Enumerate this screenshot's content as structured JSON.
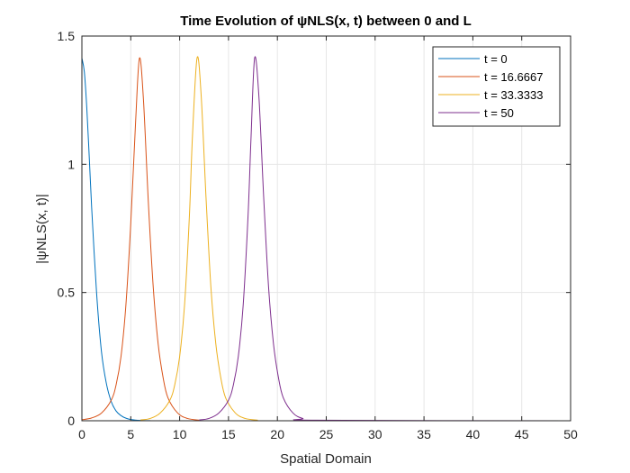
{
  "chart_data": {
    "type": "line",
    "title": "Time Evolution of ψNLS(x, t) between 0 and L",
    "xlabel": "Spatial Domain",
    "ylabel": "|ψNLS(x, t)|",
    "xlim": [
      0,
      50
    ],
    "ylim": [
      0,
      1.5
    ],
    "xticks": [
      0,
      5,
      10,
      15,
      20,
      25,
      30,
      35,
      40,
      45,
      50
    ],
    "yticks": [
      0,
      0.5,
      1,
      1.5
    ],
    "xtick_labels": [
      "0",
      "5",
      "10",
      "15",
      "20",
      "25",
      "30",
      "35",
      "40",
      "45",
      "50"
    ],
    "ytick_labels": [
      "0",
      "0.5",
      "1",
      "1.5"
    ],
    "grid": true,
    "legend_position": "top-right",
    "series": [
      {
        "name": "t = 0",
        "color": "#0072BD",
        "x": [
          0,
          0.25,
          0.5,
          0.75,
          1,
          1.5,
          2,
          2.5,
          3,
          3.5,
          4,
          4.5,
          5,
          6,
          7
        ],
        "y": [
          1.414,
          1.36,
          1.22,
          1.03,
          0.83,
          0.5,
          0.27,
          0.146,
          0.075,
          0.038,
          0.02,
          0.01,
          0.005,
          0.0013,
          0.0003
        ]
      },
      {
        "name": "t = 16.6667",
        "color": "#D95319",
        "x": [
          0,
          1,
          2,
          3,
          3.5,
          4,
          4.5,
          5,
          5.5,
          5.89,
          6.3,
          6.8,
          7.3,
          7.8,
          8.3,
          8.8,
          9.8,
          10.8,
          12
        ],
        "y": [
          0.004,
          0.011,
          0.03,
          0.08,
          0.14,
          0.25,
          0.45,
          0.77,
          1.17,
          1.414,
          1.25,
          0.85,
          0.52,
          0.3,
          0.17,
          0.09,
          0.03,
          0.009,
          0.002
        ]
      },
      {
        "name": "t = 33.3333",
        "color": "#EDB120",
        "x": [
          6,
          7,
          8,
          9,
          9.5,
          10,
          10.5,
          11,
          11.3,
          11.78,
          12.2,
          12.7,
          13.2,
          13.7,
          14.2,
          14.7,
          15.7,
          16.7,
          18
        ],
        "y": [
          0.003,
          0.009,
          0.03,
          0.08,
          0.14,
          0.25,
          0.45,
          0.8,
          1.1,
          1.414,
          1.27,
          0.87,
          0.52,
          0.3,
          0.17,
          0.09,
          0.03,
          0.009,
          0.002
        ]
      },
      {
        "name": "t = 50",
        "color": "#7E2F8E",
        "x": [
          12,
          13,
          14,
          15,
          15.5,
          16,
          16.5,
          17,
          17.3,
          17.67,
          18.1,
          18.6,
          19.1,
          19.6,
          20.1,
          20.6,
          21.6,
          22.6,
          24,
          50
        ],
        "y": [
          0.003,
          0.009,
          0.03,
          0.08,
          0.14,
          0.25,
          0.45,
          0.8,
          1.1,
          1.414,
          1.27,
          0.87,
          0.52,
          0.3,
          0.17,
          0.09,
          0.03,
          0.009,
          0.002,
          0
        ]
      }
    ]
  }
}
